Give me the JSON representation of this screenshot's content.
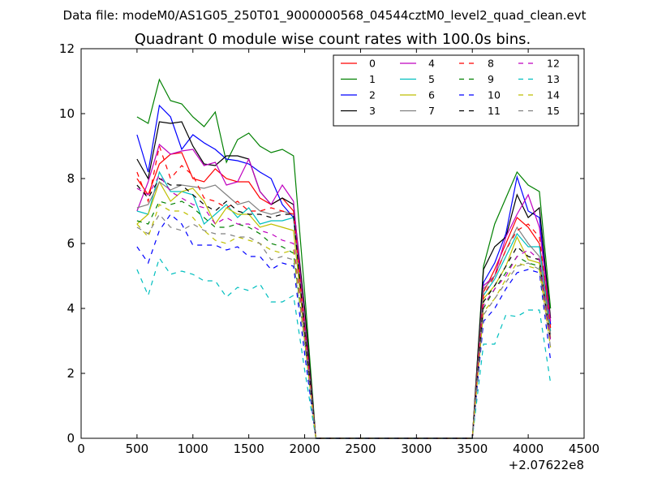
{
  "chart_data": {
    "type": "line",
    "suptitle": "Data file: modeM0/AS1G05_250T01_9000000568_04544cztM0_level2_quad_clean.evt",
    "title": "Quadrant 0 module wise count rates with 100.0s bins.",
    "xlabel": "",
    "ylabel": "",
    "x_offset_label": "+2.07622e8",
    "xlim": [
      0,
      4500
    ],
    "ylim": [
      0,
      12
    ],
    "x_ticks": [
      0,
      500,
      1000,
      1500,
      2000,
      2500,
      3000,
      3500,
      4000,
      4500
    ],
    "y_ticks": [
      0,
      2,
      4,
      6,
      8,
      10,
      12
    ],
    "grid": false,
    "legend": {
      "placement": "top-right",
      "columns": 4
    },
    "x": [
      500,
      600,
      700,
      800,
      900,
      1000,
      1100,
      1200,
      1300,
      1400,
      1500,
      1600,
      1700,
      1800,
      1900,
      2000,
      2100,
      2200,
      2300,
      2400,
      2500,
      2600,
      2700,
      2800,
      2900,
      3000,
      3100,
      3200,
      3300,
      3400,
      3500,
      3600,
      3700,
      3800,
      3900,
      4000,
      4100,
      4200
    ],
    "series": [
      {
        "name": "0",
        "color": "#ff0000",
        "dash": "solid",
        "values": [
          8.0,
          7.5,
          8.45,
          8.75,
          8.8,
          8.0,
          7.9,
          8.3,
          8.0,
          7.9,
          7.9,
          7.4,
          7.2,
          7.4,
          7.0,
          3.5,
          0,
          0,
          0,
          0,
          0,
          0,
          0,
          0,
          0,
          0,
          0,
          0,
          0,
          0,
          0,
          4.5,
          5.2,
          6.0,
          6.8,
          6.5,
          6.0,
          3.5
        ]
      },
      {
        "name": "1",
        "color": "#008000",
        "dash": "solid",
        "values": [
          9.9,
          9.7,
          11.05,
          10.4,
          10.3,
          9.9,
          9.6,
          10.05,
          8.5,
          9.2,
          9.4,
          9.0,
          8.8,
          8.9,
          8.7,
          4.5,
          0,
          0,
          0,
          0,
          0,
          0,
          0,
          0,
          0,
          0,
          0,
          0,
          0,
          0,
          0,
          5.3,
          6.6,
          7.4,
          8.2,
          7.8,
          7.6,
          4.0
        ]
      },
      {
        "name": "2",
        "color": "#0000ff",
        "dash": "solid",
        "values": [
          9.35,
          8.2,
          10.25,
          9.9,
          8.9,
          9.35,
          9.1,
          8.9,
          8.6,
          8.55,
          8.45,
          8.2,
          8.0,
          7.2,
          6.8,
          3.5,
          0,
          0,
          0,
          0,
          0,
          0,
          0,
          0,
          0,
          0,
          0,
          0,
          0,
          0,
          0,
          4.8,
          5.4,
          6.3,
          8.05,
          7.0,
          6.8,
          3.5
        ]
      },
      {
        "name": "3",
        "color": "#000000",
        "dash": "solid",
        "values": [
          8.6,
          8.0,
          9.75,
          9.7,
          9.75,
          9.0,
          8.45,
          8.4,
          8.7,
          8.7,
          8.6,
          7.6,
          7.2,
          7.4,
          7.2,
          4.0,
          0,
          0,
          0,
          0,
          0,
          0,
          0,
          0,
          0,
          0,
          0,
          0,
          0,
          0,
          0,
          5.2,
          5.9,
          6.2,
          7.5,
          6.8,
          7.1,
          3.7
        ]
      },
      {
        "name": "4",
        "color": "#bf00bf",
        "dash": "solid",
        "values": [
          7.0,
          7.9,
          9.05,
          8.75,
          8.85,
          8.9,
          8.4,
          8.5,
          7.8,
          7.9,
          8.6,
          7.6,
          7.2,
          7.8,
          7.3,
          3.6,
          0,
          0,
          0,
          0,
          0,
          0,
          0,
          0,
          0,
          0,
          0,
          0,
          0,
          0,
          0,
          4.7,
          5.0,
          6.2,
          6.9,
          7.5,
          6.5,
          3.6
        ]
      },
      {
        "name": "5",
        "color": "#00bfbf",
        "dash": "solid",
        "values": [
          7.0,
          6.9,
          8.2,
          7.6,
          7.6,
          7.5,
          6.6,
          6.9,
          7.2,
          6.8,
          7.1,
          6.6,
          6.7,
          6.7,
          6.8,
          3.4,
          0,
          0,
          0,
          0,
          0,
          0,
          0,
          0,
          0,
          0,
          0,
          0,
          0,
          0,
          0,
          4.4,
          4.9,
          5.6,
          6.3,
          5.9,
          5.9,
          3.3
        ]
      },
      {
        "name": "6",
        "color": "#bfbf00",
        "dash": "solid",
        "values": [
          6.6,
          6.9,
          7.9,
          7.3,
          7.6,
          7.7,
          7.3,
          6.6,
          7.1,
          6.9,
          6.9,
          6.5,
          6.6,
          6.5,
          6.4,
          3.2,
          0,
          0,
          0,
          0,
          0,
          0,
          0,
          0,
          0,
          0,
          0,
          0,
          0,
          0,
          0,
          4.3,
          4.7,
          5.3,
          6.2,
          5.5,
          5.4,
          3.1
        ]
      },
      {
        "name": "7",
        "color": "#808080",
        "dash": "solid",
        "values": [
          7.1,
          7.2,
          7.9,
          7.65,
          7.8,
          7.75,
          7.7,
          7.8,
          7.5,
          7.2,
          7.3,
          7.0,
          6.9,
          7.0,
          6.9,
          3.4,
          0,
          0,
          0,
          0,
          0,
          0,
          0,
          0,
          0,
          0,
          0,
          0,
          0,
          0,
          0,
          4.6,
          5.0,
          5.8,
          6.5,
          6.0,
          5.6,
          3.2
        ]
      },
      {
        "name": "8",
        "color": "#ff0000",
        "dash": "dashed",
        "values": [
          8.2,
          7.3,
          9.0,
          8.0,
          8.4,
          8.1,
          7.4,
          7.3,
          7.1,
          7.3,
          7.0,
          7.0,
          7.1,
          7.0,
          6.9,
          3.4,
          0,
          0,
          0,
          0,
          0,
          0,
          0,
          0,
          0,
          0,
          0,
          0,
          0,
          0,
          0,
          4.4,
          5.0,
          5.8,
          6.4,
          6.6,
          6.2,
          3.4
        ]
      },
      {
        "name": "9",
        "color": "#008000",
        "dash": "dashed",
        "values": [
          6.7,
          6.6,
          7.3,
          7.2,
          7.3,
          7.1,
          6.8,
          6.5,
          6.5,
          6.6,
          6.5,
          6.3,
          6.0,
          5.9,
          5.7,
          3.0,
          0,
          0,
          0,
          0,
          0,
          0,
          0,
          0,
          0,
          0,
          0,
          0,
          0,
          0,
          0,
          4.0,
          4.6,
          5.1,
          5.6,
          5.4,
          5.3,
          3.0
        ]
      },
      {
        "name": "10",
        "color": "#0000ff",
        "dash": "dashed",
        "values": [
          5.9,
          5.4,
          6.4,
          6.9,
          6.6,
          5.95,
          5.95,
          5.95,
          5.8,
          5.9,
          5.6,
          5.6,
          5.2,
          5.4,
          5.3,
          2.6,
          0,
          0,
          0,
          0,
          0,
          0,
          0,
          0,
          0,
          0,
          0,
          0,
          0,
          0,
          0,
          3.6,
          4.0,
          4.6,
          5.1,
          5.2,
          5.1,
          2.4
        ]
      },
      {
        "name": "11",
        "color": "#000000",
        "dash": "dashed",
        "values": [
          7.8,
          7.4,
          8.0,
          7.8,
          7.8,
          7.5,
          7.2,
          7.0,
          7.3,
          7.0,
          6.9,
          6.9,
          6.8,
          6.9,
          6.9,
          3.3,
          0,
          0,
          0,
          0,
          0,
          0,
          0,
          0,
          0,
          0,
          0,
          0,
          0,
          0,
          0,
          4.2,
          4.7,
          5.3,
          5.9,
          5.6,
          5.5,
          3.0
        ]
      },
      {
        "name": "12",
        "color": "#bf00bf",
        "dash": "dashed",
        "values": [
          7.7,
          7.5,
          8.1,
          7.6,
          7.4,
          7.2,
          7.1,
          6.6,
          6.8,
          6.6,
          6.6,
          6.4,
          6.3,
          6.1,
          6.0,
          3.2,
          0,
          0,
          0,
          0,
          0,
          0,
          0,
          0,
          0,
          0,
          0,
          0,
          0,
          0,
          0,
          4.1,
          4.6,
          5.0,
          5.6,
          5.8,
          5.5,
          3.0
        ]
      },
      {
        "name": "13",
        "color": "#00bfbf",
        "dash": "dashed",
        "values": [
          5.2,
          4.4,
          5.55,
          5.05,
          5.15,
          5.05,
          4.85,
          4.85,
          4.35,
          4.65,
          4.55,
          4.75,
          4.2,
          4.2,
          4.4,
          2.1,
          0,
          0,
          0,
          0,
          0,
          0,
          0,
          0,
          0,
          0,
          0,
          0,
          0,
          0,
          0,
          2.9,
          2.9,
          3.8,
          3.75,
          3.95,
          3.95,
          1.7
        ]
      },
      {
        "name": "14",
        "color": "#bfbf00",
        "dash": "dashed",
        "values": [
          6.6,
          6.2,
          7.2,
          7.0,
          7.0,
          6.8,
          6.4,
          6.1,
          6.0,
          6.2,
          6.1,
          6.0,
          5.8,
          5.7,
          5.8,
          3.0,
          0,
          0,
          0,
          0,
          0,
          0,
          0,
          0,
          0,
          0,
          0,
          0,
          0,
          0,
          0,
          3.9,
          4.3,
          4.9,
          5.4,
          5.3,
          5.2,
          2.8
        ]
      },
      {
        "name": "15",
        "color": "#808080",
        "dash": "dashed",
        "values": [
          6.5,
          6.3,
          6.9,
          6.5,
          6.4,
          6.6,
          6.4,
          6.3,
          6.3,
          6.2,
          6.2,
          6.0,
          5.5,
          5.6,
          5.5,
          2.9,
          0,
          0,
          0,
          0,
          0,
          0,
          0,
          0,
          0,
          0,
          0,
          0,
          0,
          0,
          0,
          3.8,
          4.3,
          4.8,
          5.3,
          5.4,
          5.2,
          2.8
        ]
      }
    ]
  }
}
